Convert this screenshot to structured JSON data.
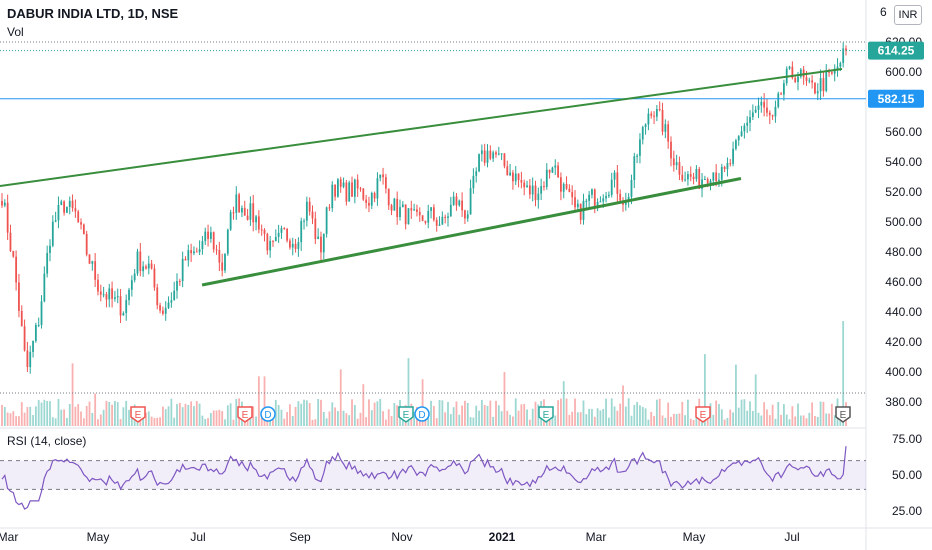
{
  "header": {
    "title": "DABUR INDIA LTD, 1D, NSE",
    "volume_label": "Vol",
    "currency": "INR",
    "top_price_partial": "6"
  },
  "rsi_panel": {
    "label": "RSI (14, close)",
    "ticks": [
      "75.00",
      "50.00",
      "25.00"
    ]
  },
  "price_badges": {
    "last_price": "614.25",
    "horizontal_line": "582.15",
    "last_price_color": "#26a69a",
    "horizontal_line_color": "#2196f3"
  },
  "event_markers": [
    {
      "label": "E",
      "color": "#ef5350"
    },
    {
      "label": "E",
      "color": "#ef5350"
    },
    {
      "label": "D",
      "color": "#2196f3"
    },
    {
      "label": "E",
      "color": "#26a69a"
    },
    {
      "label": "D",
      "color": "#2196f3"
    },
    {
      "label": "E",
      "color": "#26a69a"
    },
    {
      "label": "E",
      "color": "#ef5350"
    },
    {
      "label": "E",
      "color": "#555555"
    }
  ],
  "chart_data": {
    "type": "candlestick",
    "title": "DABUR INDIA LTD, 1D, NSE",
    "y_axis": {
      "min": 370,
      "max": 620,
      "ticks": [
        "620.00",
        "600.00",
        "580.00",
        "560.00",
        "540.00",
        "520.00",
        "500.00",
        "480.00",
        "460.00",
        "440.00",
        "420.00",
        "400.00",
        "380.00"
      ]
    },
    "x_axis": {
      "ticks": [
        "Mar",
        "May",
        "Jul",
        "Sep",
        "Nov",
        "2021",
        "Mar",
        "May",
        "Jul"
      ]
    },
    "colors": {
      "up": "#26a69a",
      "down": "#ef5350",
      "trendline": "#388e3c",
      "hline": "#2196f3",
      "rsi": "#7e57c2"
    },
    "price_path": [
      {
        "date": "Mar",
        "close": 518
      },
      {
        "date": "",
        "close": 470
      },
      {
        "date": "",
        "close": 400
      },
      {
        "date": "",
        "close": 435
      },
      {
        "date": "",
        "close": 495
      },
      {
        "date": "",
        "close": 512
      },
      {
        "date": "",
        "close": 505
      },
      {
        "date": "May",
        "close": 478
      },
      {
        "date": "",
        "close": 455
      },
      {
        "date": "",
        "close": 448
      },
      {
        "date": "",
        "close": 442
      },
      {
        "date": "",
        "close": 475
      },
      {
        "date": "",
        "close": 470
      },
      {
        "date": "",
        "close": 440
      },
      {
        "date": "",
        "close": 452
      },
      {
        "date": "Jul",
        "close": 475
      },
      {
        "date": "",
        "close": 480
      },
      {
        "date": "",
        "close": 492
      },
      {
        "date": "",
        "close": 470
      },
      {
        "date": "",
        "close": 515
      },
      {
        "date": "",
        "close": 508
      },
      {
        "date": "",
        "close": 500
      },
      {
        "date": "Sep",
        "close": 480
      },
      {
        "date": "",
        "close": 492
      },
      {
        "date": "",
        "close": 488
      },
      {
        "date": "",
        "close": 512
      },
      {
        "date": "",
        "close": 480
      },
      {
        "date": "",
        "close": 525
      },
      {
        "date": "",
        "close": 520
      },
      {
        "date": "",
        "close": 522
      },
      {
        "date": "Nov",
        "close": 515
      },
      {
        "date": "",
        "close": 530
      },
      {
        "date": "",
        "close": 510
      },
      {
        "date": "",
        "close": 505
      },
      {
        "date": "",
        "close": 500
      },
      {
        "date": "",
        "close": 505
      },
      {
        "date": "",
        "close": 498
      },
      {
        "date": "",
        "close": 515
      },
      {
        "date": "",
        "close": 505
      },
      {
        "date": "2021",
        "close": 540
      },
      {
        "date": "",
        "close": 548
      },
      {
        "date": "",
        "close": 538
      },
      {
        "date": "",
        "close": 530
      },
      {
        "date": "",
        "close": 520
      },
      {
        "date": "",
        "close": 522
      },
      {
        "date": "",
        "close": 540
      },
      {
        "date": "",
        "close": 520
      },
      {
        "date": "Mar",
        "close": 505
      },
      {
        "date": "",
        "close": 515
      },
      {
        "date": "",
        "close": 520
      },
      {
        "date": "",
        "close": 528
      },
      {
        "date": "",
        "close": 512
      },
      {
        "date": "",
        "close": 548
      },
      {
        "date": "",
        "close": 578
      },
      {
        "date": "",
        "close": 565
      },
      {
        "date": "",
        "close": 540
      },
      {
        "date": "May",
        "close": 530
      },
      {
        "date": "",
        "close": 528
      },
      {
        "date": "",
        "close": 535
      },
      {
        "date": "",
        "close": 530
      },
      {
        "date": "",
        "close": 548
      },
      {
        "date": "",
        "close": 570
      },
      {
        "date": "",
        "close": 578
      },
      {
        "date": "",
        "close": 565
      },
      {
        "date": "Jul",
        "close": 595
      },
      {
        "date": "",
        "close": 600
      },
      {
        "date": "",
        "close": 588
      },
      {
        "date": "",
        "close": 592
      },
      {
        "date": "",
        "close": 598
      },
      {
        "date": "",
        "close": 614.25
      }
    ],
    "trendlines": [
      {
        "name": "upper",
        "points": [
          {
            "x_frac": 0.0,
            "y": 524
          },
          {
            "x_frac": 1.0,
            "y": 602
          }
        ]
      },
      {
        "name": "lower",
        "points": [
          {
            "x_frac": 0.24,
            "y": 458
          },
          {
            "x_frac": 0.88,
            "y": 529
          }
        ]
      }
    ],
    "horizontal_line": 582.15,
    "last_price": 614.25,
    "rsi": {
      "ylim": [
        20,
        80
      ],
      "bands": [
        40,
        60
      ],
      "last": 70
    }
  }
}
